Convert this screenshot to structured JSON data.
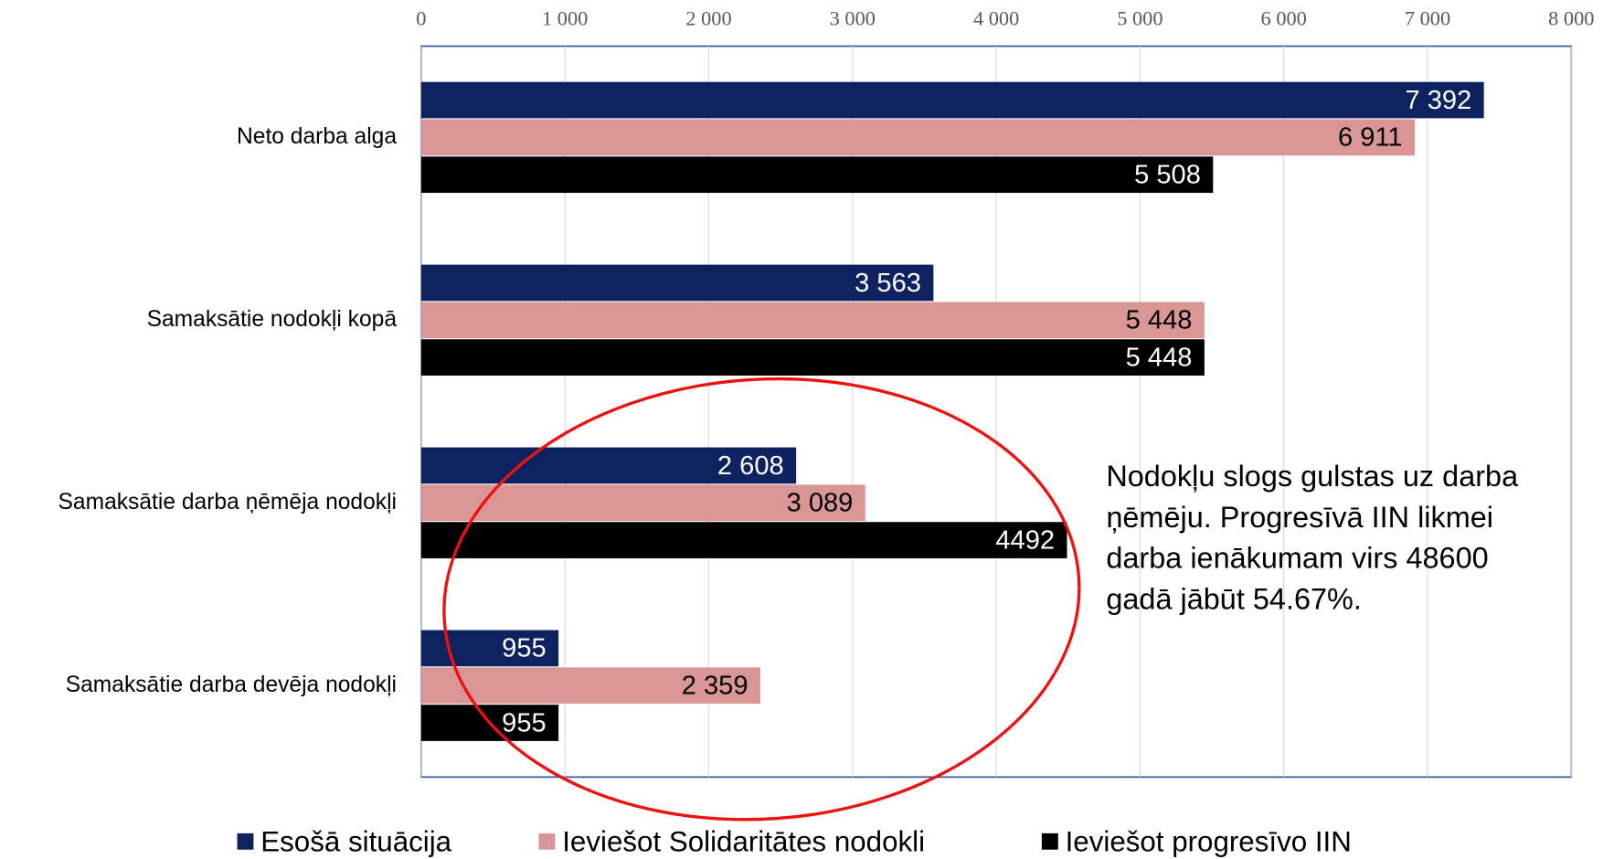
{
  "chart_data": {
    "type": "bar",
    "orientation": "horizontal",
    "categories": [
      "Neto darba alga",
      "Samaksātie nodokļi kopā",
      "Samaksātie darba ņēmēja nodokļi",
      "Samaksātie darba devēja nodokļi"
    ],
    "series": [
      {
        "name": "Esošā situācija",
        "color": "#0e2260",
        "values": [
          7392,
          3563,
          2608,
          955
        ],
        "value_labels": [
          "7 392",
          "3 563",
          "2 608",
          "955"
        ]
      },
      {
        "name": "Ieviešot Solidaritātes nodokli",
        "color": "#d99694",
        "values": [
          6911,
          5448,
          3089,
          2359
        ],
        "value_labels": [
          "6 911",
          "5 448",
          "3 089",
          "2 359"
        ]
      },
      {
        "name": "Ieviešot progresīvo IIN",
        "color": "#000000",
        "values": [
          5508,
          5448,
          4492,
          955
        ],
        "value_labels": [
          "5 508",
          "5 448",
          "4492",
          "955"
        ]
      }
    ],
    "xlim": [
      0,
      8000
    ],
    "xticks": [
      0,
      {
        "value": 1000,
        "label": "1 000"
      },
      {
        "value": 2000,
        "label": "2 000"
      },
      {
        "value": 3000,
        "label": "3 000"
      },
      {
        "value": 4000,
        "label": "4 000"
      },
      {
        "value": 5000,
        "label": "5 000"
      },
      {
        "value": 6000,
        "label": "6 000"
      },
      {
        "value": 7000,
        "label": "7 000"
      },
      {
        "value": 8000,
        "label": "8 000"
      }
    ],
    "grid": true,
    "legend": "bottom",
    "annotation": [
      "Nodokļu slogs gulstas uz darba",
      "ņēmēju. Progresīvā IIN likmei",
      "darba ienākumam virs 48600",
      "gadā jābūt 54.67%."
    ]
  }
}
